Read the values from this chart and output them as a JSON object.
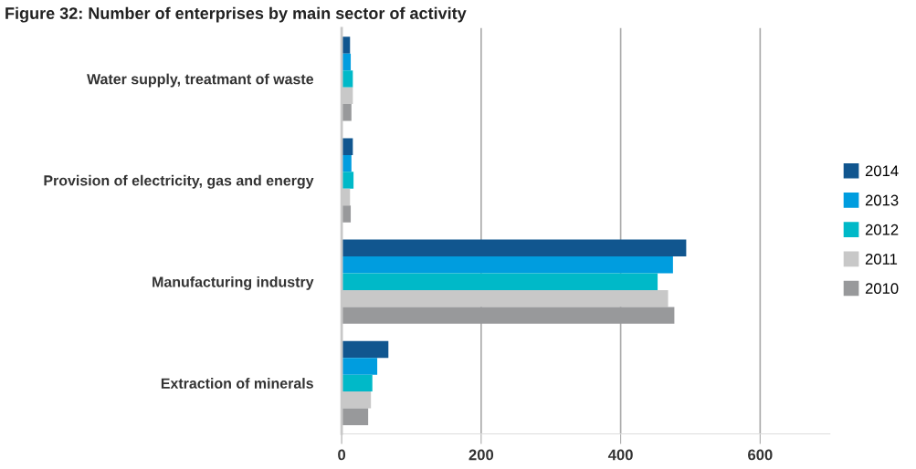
{
  "chart_data": {
    "type": "bar",
    "orientation": "horizontal",
    "title": "Figure 32: Number of enterprises by main sector of activity",
    "categories": [
      "Water supply, treatmant of waste",
      "Provision of electricity, gas and energy",
      "Manufacturing industry",
      "Extraction of minerals"
    ],
    "series": [
      {
        "name": "2014",
        "color": "#11568f",
        "values": [
          12,
          16,
          494,
          67
        ]
      },
      {
        "name": "2013",
        "color": "#009ddf",
        "values": [
          13,
          14,
          475,
          51
        ]
      },
      {
        "name": "2012",
        "color": "#00b9c8",
        "values": [
          16,
          17,
          453,
          44
        ]
      },
      {
        "name": "2011",
        "color": "#c8c8c8",
        "values": [
          16,
          12,
          468,
          42
        ]
      },
      {
        "name": "2010",
        "color": "#98999b",
        "values": [
          14,
          13,
          477,
          38
        ]
      }
    ],
    "xlim": [
      0,
      700
    ],
    "xticks": [
      0,
      200,
      400,
      600
    ],
    "grid": "x",
    "legend": "right"
  }
}
